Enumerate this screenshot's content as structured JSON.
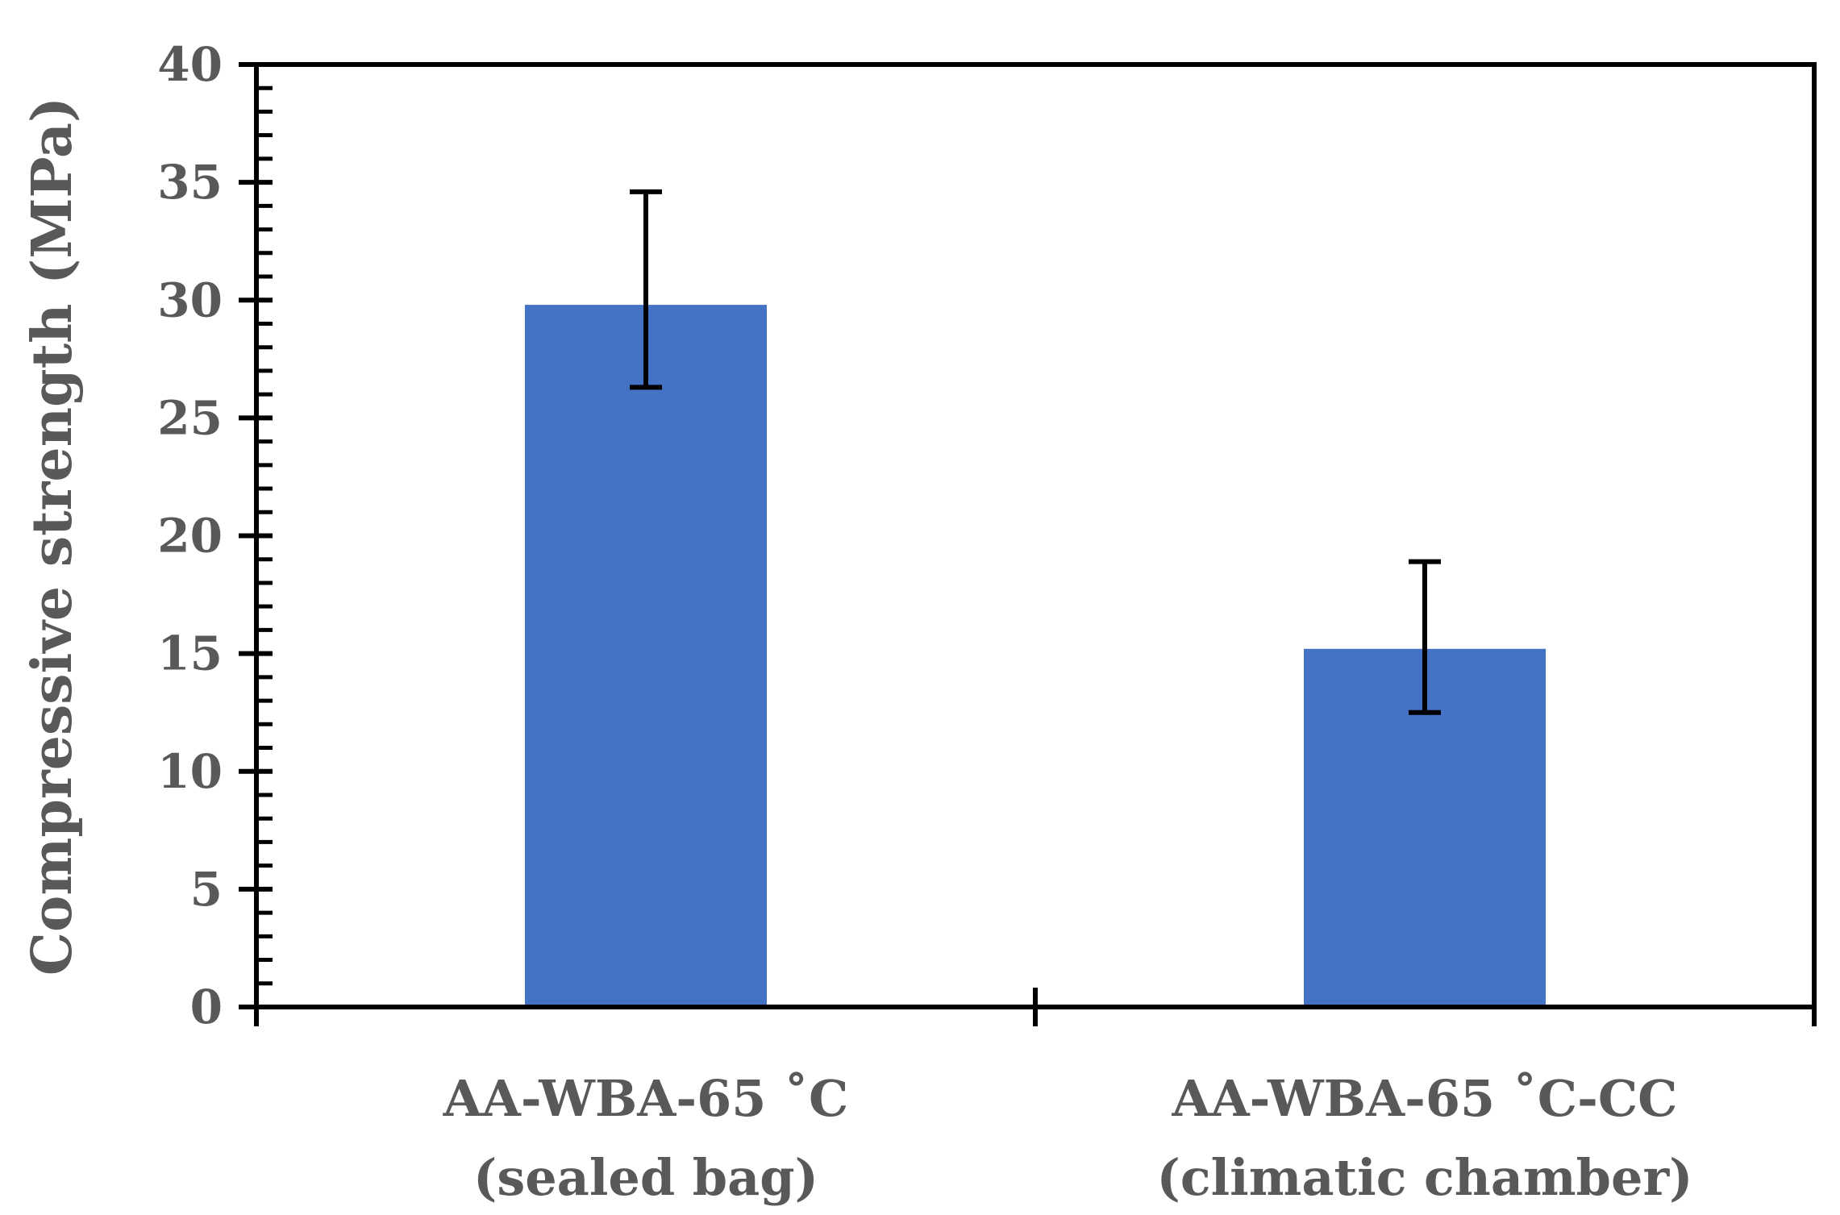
{
  "chart_data": {
    "type": "bar",
    "title": "",
    "xlabel": "",
    "ylabel": "Compressive strength (MPa)",
    "ylim": [
      0,
      40
    ],
    "y_ticks": [
      "0",
      "5",
      "10",
      "15",
      "20",
      "25",
      "30",
      "35",
      "40"
    ],
    "categories": [
      {
        "line1": "AA-WBA-65 ˚C",
        "line2": "(sealed bag)"
      },
      {
        "line1": "AA-WBA-65 ˚C-CC",
        "line2": "(climatic chamber)"
      }
    ],
    "values": [
      29.8,
      15.2
    ],
    "error_low": [
      26.3,
      12.5
    ],
    "error_high": [
      34.6,
      18.9
    ],
    "grid": false,
    "legend": "none",
    "colors": {
      "bar": "#4472C4",
      "axis": "#000000",
      "text": "#595959"
    }
  }
}
